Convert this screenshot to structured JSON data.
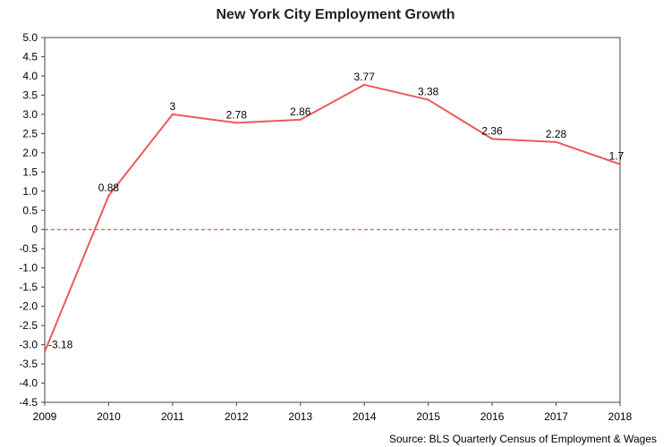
{
  "chart_data": {
    "type": "line",
    "title": "New York City Employment Growth",
    "source": "Source: BLS Quarterly Census of Employment & Wages",
    "x": [
      "2009",
      "2010",
      "2011",
      "2012",
      "2013",
      "2014",
      "2015",
      "2016",
      "2017",
      "2018"
    ],
    "series": [
      {
        "values": [
          -3.18,
          0.88,
          3,
          2.78,
          2.86,
          3.77,
          3.38,
          2.36,
          2.28,
          1.7
        ],
        "labels": [
          "-3.18",
          "0.88",
          "3",
          "2.78",
          "2.86",
          "3.77",
          "3.38",
          "2.36",
          "2.28",
          "1.7"
        ],
        "color": "#f0575a"
      }
    ],
    "yticks": [
      "5.0",
      "4.5",
      "4.0",
      "3.5",
      "3.0",
      "2.5",
      "2.0",
      "1.5",
      "1.0",
      "0.5",
      "0",
      "-0.5",
      "-1.0",
      "-1.5",
      "-2.0",
      "-2.5",
      "-3.0",
      "-3.5",
      "-4.0",
      "-4.5"
    ],
    "ylim": [
      -4.5,
      5.0
    ],
    "zero_line_color": "#d32f2f",
    "grid": false,
    "legend": "none"
  }
}
